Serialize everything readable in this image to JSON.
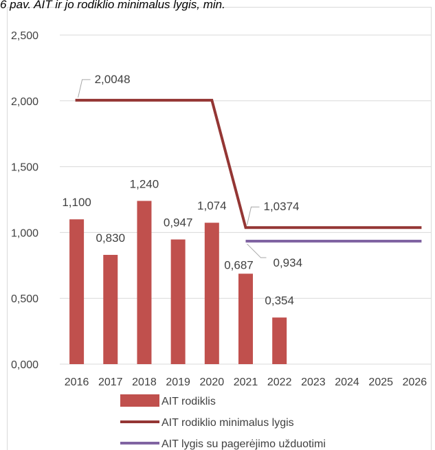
{
  "chart_data": {
    "type": "bar",
    "title": "6 pav. AIT ir jo rodiklio minimalus lygis, min.",
    "categories": [
      "2016",
      "2017",
      "2018",
      "2019",
      "2020",
      "2021",
      "2022",
      "2023",
      "2024",
      "2025",
      "2026"
    ],
    "ylim": [
      0,
      2.5
    ],
    "y_ticks": [
      "0,000",
      "0,500",
      "1,000",
      "1,500",
      "2,000",
      "2,500"
    ],
    "y_tick_values": [
      0,
      0.5,
      1,
      1.5,
      2,
      2.5
    ],
    "grid": true,
    "legend_position": "bottom",
    "series": [
      {
        "name": "AIT rodiklis",
        "kind": "bar",
        "color": "#c0504d",
        "values": [
          1.1,
          0.83,
          1.24,
          0.947,
          1.074,
          0.687,
          0.354,
          null,
          null,
          null,
          null
        ],
        "labels": [
          "1,100",
          "0,830",
          "1,240",
          "0,947",
          "1,074",
          "0,687",
          "0,354",
          null,
          null,
          null,
          null
        ]
      },
      {
        "name": "AIT rodiklio minimalus lygis",
        "kind": "line",
        "color": "#943634",
        "values": [
          2.0048,
          2.0048,
          2.0048,
          2.0048,
          2.0048,
          1.0374,
          1.0374,
          1.0374,
          1.0374,
          1.0374,
          1.0374
        ],
        "annotations": [
          {
            "index": 0,
            "text": "2,0048"
          },
          {
            "index": 5,
            "text": "1,0374"
          }
        ]
      },
      {
        "name": "AIT lygis su pagerėjimo užduotimi",
        "kind": "line",
        "color": "#8064a2",
        "values": [
          null,
          null,
          null,
          null,
          null,
          0.934,
          0.934,
          0.934,
          0.934,
          0.934,
          0.934
        ],
        "annotations": [
          {
            "index": 5,
            "text": "0,934"
          }
        ]
      }
    ]
  }
}
